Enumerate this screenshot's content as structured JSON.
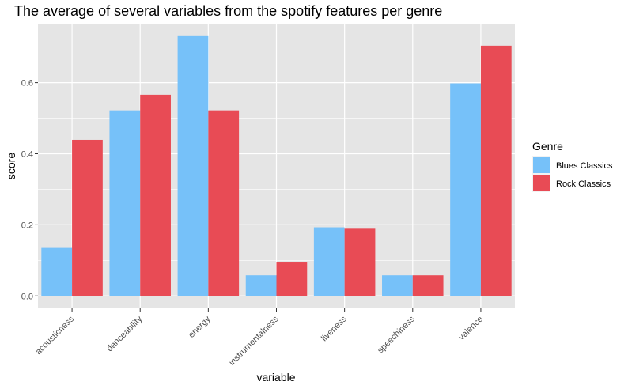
{
  "chart_data": {
    "type": "bar",
    "title": "The average of several variables from the spotify features per genre",
    "xlabel": "variable",
    "ylabel": "score",
    "categories": [
      "acousticness",
      "danceability",
      "energy",
      "instrumentalness",
      "liveness",
      "speechiness",
      "valence"
    ],
    "series": [
      {
        "name": "Blues Classics",
        "color": "#76c1f9",
        "values": [
          0.135,
          0.522,
          0.733,
          0.058,
          0.193,
          0.058,
          0.598
        ]
      },
      {
        "name": "Rock Classics",
        "color": "#e84b55",
        "values": [
          0.439,
          0.566,
          0.522,
          0.094,
          0.189,
          0.058,
          0.704
        ]
      }
    ],
    "ylim": [
      -0.035,
      0.766
    ],
    "yticks": [
      0.0,
      0.2,
      0.4,
      0.6
    ],
    "ytick_labels": [
      "0.0",
      "0.2",
      "0.4",
      "0.6"
    ],
    "grid": true,
    "background": "#e5e5e5",
    "gridline_color": "#ffffff",
    "legend": {
      "title": "Genre",
      "placement": "right"
    }
  }
}
